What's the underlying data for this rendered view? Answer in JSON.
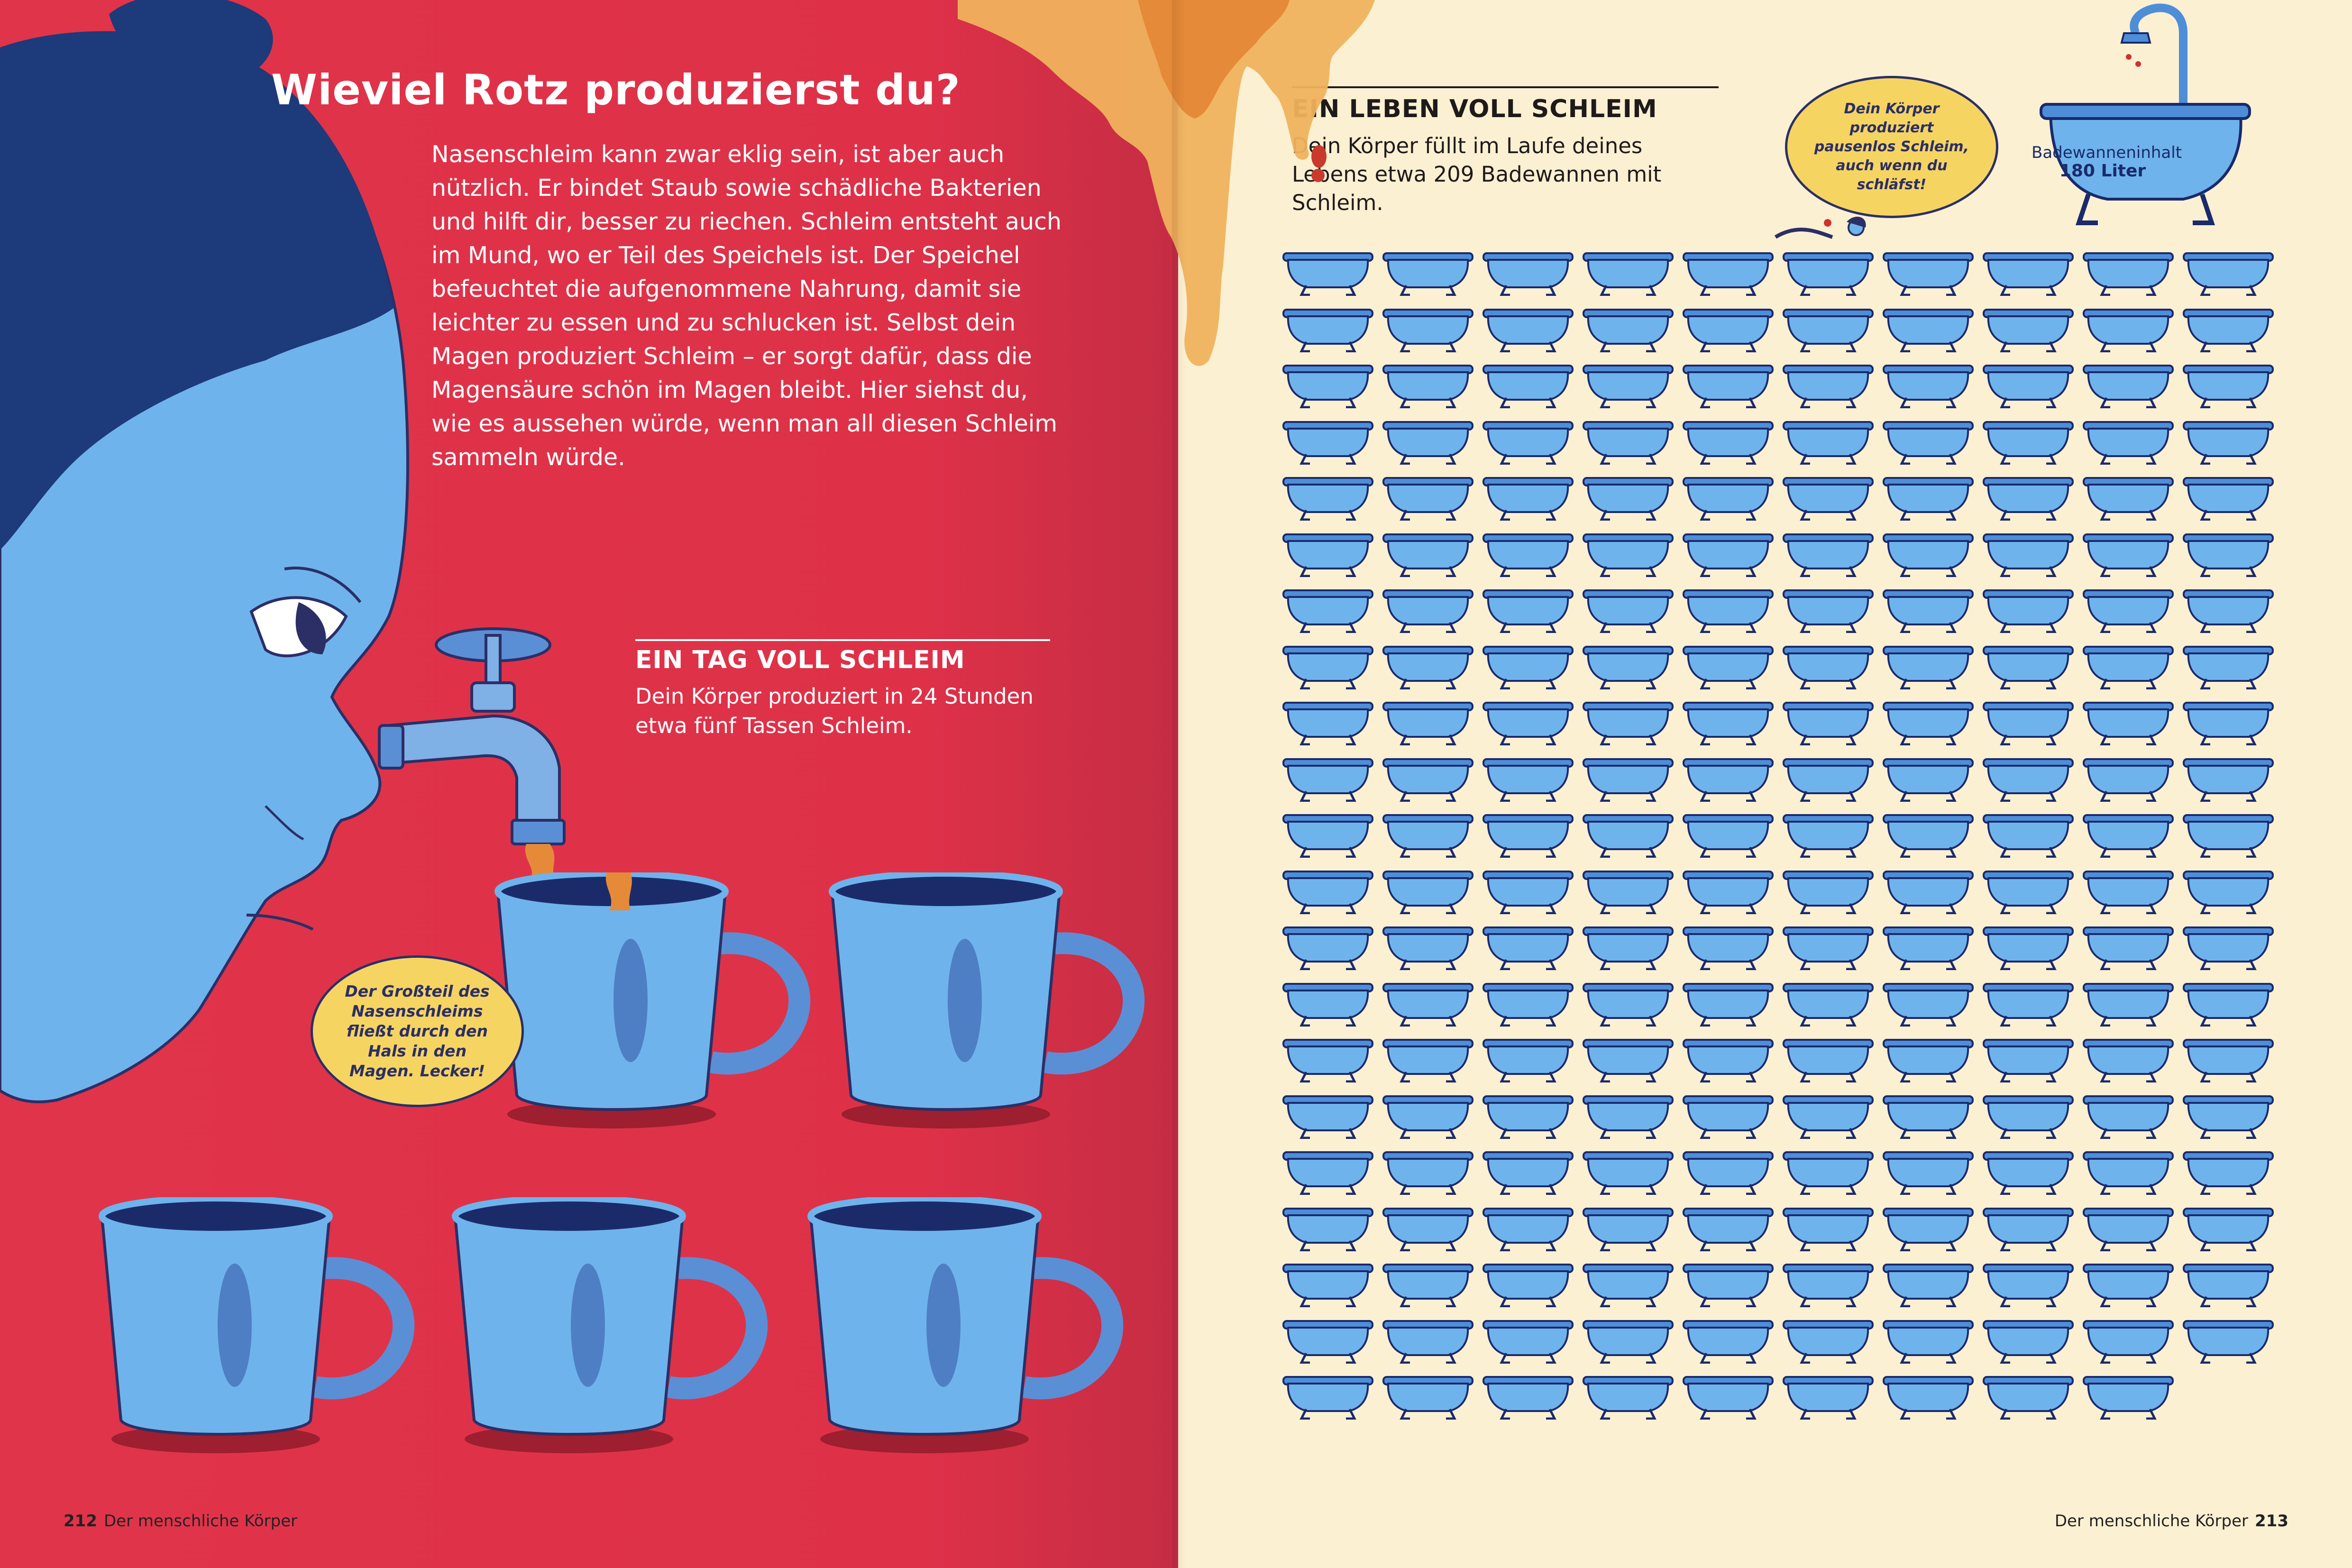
{
  "left_page": {
    "title": "Wieviel Rotz produzierst du?",
    "intro": "Nasenschleim kann zwar eklig sein, ist aber auch nützlich. Er bindet Staub sowie schädliche Bakterien und hilft dir, besser zu riechen. Schleim entsteht auch im Mund, wo er Teil des Speichels ist. Der Speichel befeuchtet die aufgenommene Nahrung, damit sie leichter zu essen und zu schlucken ist. Selbst dein Magen produziert Schleim – er sorgt dafür, dass die Magensäure schön im Magen bleibt. Hier siehst du, wie es aussehen würde, wenn man all diesen Schleim sammeln würde.",
    "day_heading": "EIN TAG VOLL SCHLEIM",
    "day_text": "Dein Körper produziert in 24 Stunden etwa fünf Tassen Schleim.",
    "bubble": "Der Großteil des Nasenschleims fließt durch den Hals in den Magen. Lecker!",
    "cup_count": 5,
    "folio_number": "212",
    "folio_title": "Der menschliche Körper"
  },
  "right_page": {
    "life_heading": "EIN LEBEN VOLL SCHLEIM",
    "life_text": "Dein Körper füllt im Laufe deines Lebens etwa 209 Badewannen mit Schleim.",
    "bubble": "Dein Körper produziert pausenlos Schleim, auch wenn du schläfst!",
    "big_tub_label": "Badewanneninhalt",
    "big_tub_value": "180 Liter",
    "bathtub_count": 209,
    "grid_columns": 10,
    "folio_number": "213",
    "folio_title": "Der menschliche Körper"
  },
  "colors": {
    "left_background": "#e0344a",
    "right_background": "#fcf0d2",
    "illustration_blue": "#6fb3ec",
    "ink_navy": "#2b2f66",
    "bubble_yellow": "#f6d461",
    "slime_orange": "#e58a38"
  }
}
